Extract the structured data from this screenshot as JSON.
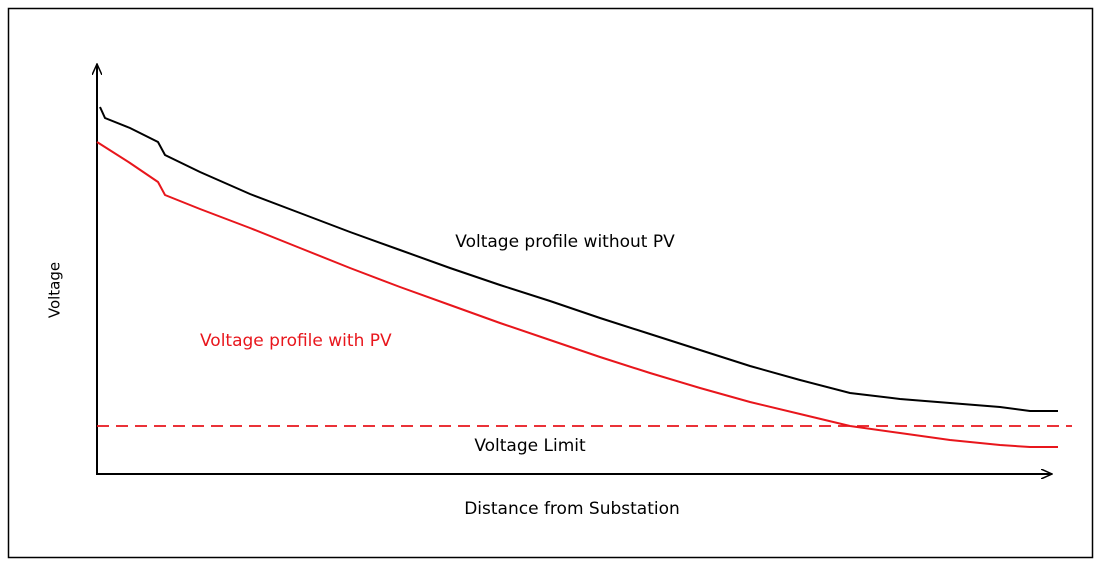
{
  "y_axis_label": "Voltage",
  "x_axis_label": "Distance from Substation",
  "curves": [
    {
      "label": "Voltage profile without PV"
    },
    {
      "label": "Voltage profile with PV"
    }
  ],
  "limit_label": "Voltage Limit"
}
